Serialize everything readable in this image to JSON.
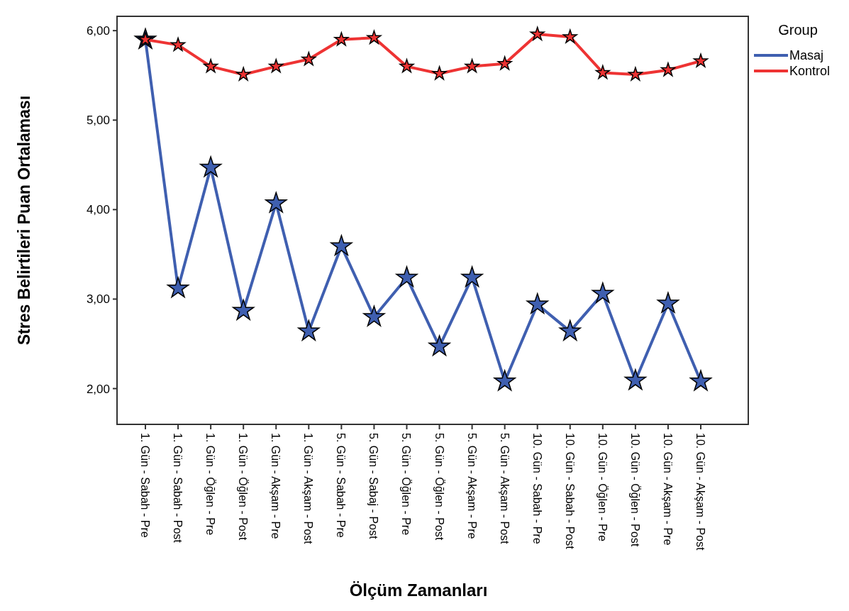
{
  "chart_data": {
    "type": "line",
    "xlabel": "Ölçüm Zamanları",
    "ylabel": "Stres Belirtileri Puan Ortalaması",
    "legend_title": "Group",
    "categories": [
      "1. Gün - Sabah - Pre",
      "1. Gün - Sabah - Post",
      "1. Gün - Öğlen - Pre",
      "1. Gün - Öğlen - Post",
      "1. Gün - Akşam - Pre",
      "1. Gün - Akşam - Post",
      "5. Gün - Sabah - Pre",
      "5. Gün - Sabaj - Post",
      "5. Gün - Öğlen - Pre",
      "5. Gün - Öğlen - Post",
      "5. Gün - Akşam - Pre",
      "5. Gün - Akşam - Post",
      "10. Gün - Sabah - Pre",
      "10. Gün - Sabah - Post",
      "10. Gün - Öğlen - Pre",
      "10. Gün - Öğlen - Post",
      "10. Gün - Akşam - Pre",
      "10. Gün - Akşam - Post"
    ],
    "series": [
      {
        "name": "Masaj",
        "color": "#3f5fb0",
        "values": [
          5.9,
          3.12,
          4.47,
          2.87,
          4.07,
          2.64,
          3.59,
          2.8,
          3.24,
          2.47,
          3.24,
          2.08,
          2.94,
          2.64,
          3.06,
          2.09,
          2.95,
          2.08
        ]
      },
      {
        "name": "Kontrol",
        "color": "#ee3333",
        "values": [
          5.9,
          5.84,
          5.6,
          5.51,
          5.6,
          5.68,
          5.9,
          5.92,
          5.6,
          5.52,
          5.6,
          5.63,
          5.96,
          5.93,
          5.53,
          5.51,
          5.56,
          5.66
        ]
      }
    ],
    "ylim": [
      1.6,
      6.16
    ],
    "yticks": [
      {
        "value": 2,
        "label": "2,00"
      },
      {
        "value": 3,
        "label": "3,00"
      },
      {
        "value": 4,
        "label": "4,00"
      },
      {
        "value": 5,
        "label": "5,00"
      },
      {
        "value": 6,
        "label": "6,00"
      }
    ],
    "grid": false,
    "legend": "top right",
    "marker": "star",
    "line_style": "solid"
  }
}
